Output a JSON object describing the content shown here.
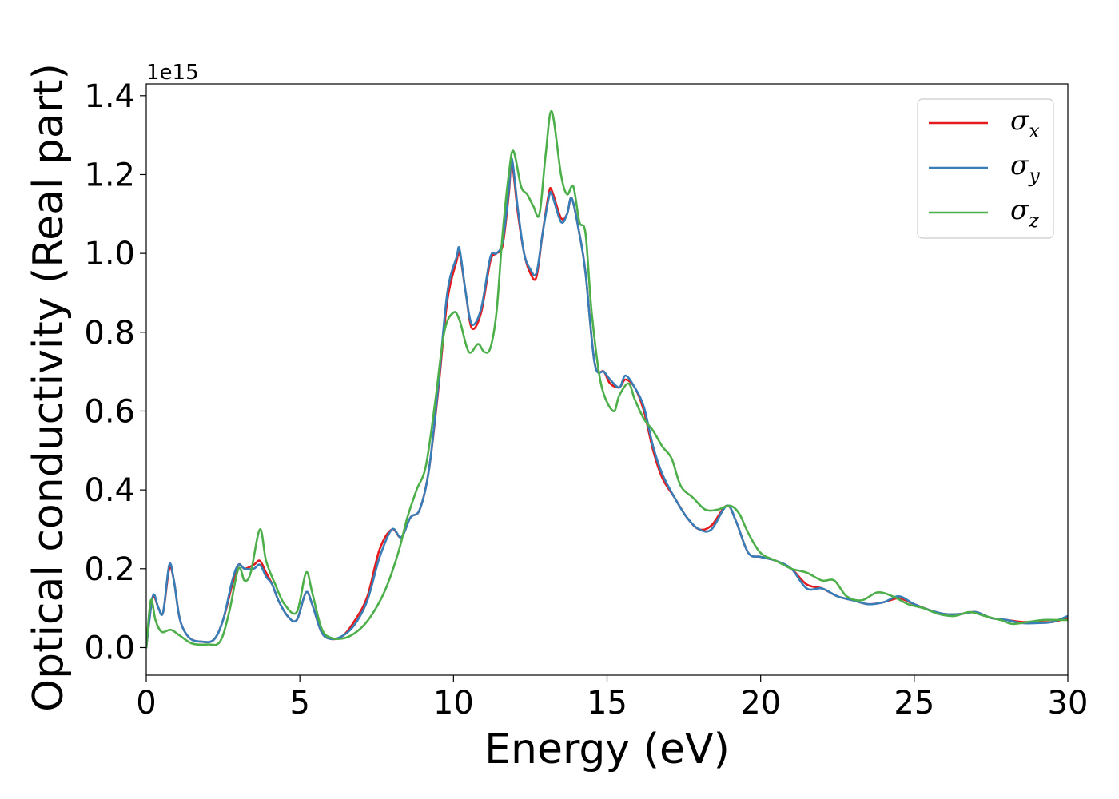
{
  "chart_data": {
    "type": "line",
    "title": "",
    "xlabel": "Energy (eV)",
    "ylabel": "Optical conductivity (Real part)",
    "y_offset_label": "1e15",
    "xlim": [
      0,
      30
    ],
    "ylim": [
      -0.07,
      1.43
    ],
    "x_ticks": [
      "0",
      "5",
      "10",
      "15",
      "20",
      "25",
      "30"
    ],
    "y_ticks": [
      "0.0",
      "0.2",
      "0.4",
      "0.6",
      "0.8",
      "1.0",
      "1.2",
      "1.4"
    ],
    "grid": false,
    "legend_position": "top-right",
    "series": [
      {
        "name": "σx",
        "name_base": "σ",
        "name_sub": "x",
        "color": "#e41a1c",
        "points": [
          [
            0,
            0.0
          ],
          [
            0.15,
            0.1
          ],
          [
            0.25,
            0.13
          ],
          [
            0.4,
            0.1
          ],
          [
            0.55,
            0.09
          ],
          [
            0.75,
            0.2
          ],
          [
            0.9,
            0.17
          ],
          [
            1.1,
            0.07
          ],
          [
            1.4,
            0.025
          ],
          [
            1.8,
            0.015
          ],
          [
            2.2,
            0.02
          ],
          [
            2.5,
            0.07
          ],
          [
            2.8,
            0.16
          ],
          [
            3.0,
            0.21
          ],
          [
            3.2,
            0.2
          ],
          [
            3.5,
            0.21
          ],
          [
            3.7,
            0.22
          ],
          [
            3.9,
            0.19
          ],
          [
            4.1,
            0.16
          ],
          [
            4.3,
            0.12
          ],
          [
            4.6,
            0.08
          ],
          [
            4.9,
            0.07
          ],
          [
            5.2,
            0.14
          ],
          [
            5.4,
            0.11
          ],
          [
            5.7,
            0.04
          ],
          [
            6.0,
            0.022
          ],
          [
            6.4,
            0.03
          ],
          [
            6.8,
            0.07
          ],
          [
            7.2,
            0.13
          ],
          [
            7.6,
            0.25
          ],
          [
            8.0,
            0.3
          ],
          [
            8.3,
            0.28
          ],
          [
            8.6,
            0.33
          ],
          [
            8.9,
            0.35
          ],
          [
            9.2,
            0.45
          ],
          [
            9.5,
            0.65
          ],
          [
            9.8,
            0.88
          ],
          [
            10.1,
            0.98
          ],
          [
            10.2,
            1.0
          ],
          [
            10.4,
            0.9
          ],
          [
            10.6,
            0.81
          ],
          [
            10.9,
            0.85
          ],
          [
            11.2,
            0.98
          ],
          [
            11.4,
            1.0
          ],
          [
            11.6,
            1.02
          ],
          [
            11.8,
            1.15
          ],
          [
            11.9,
            1.23
          ],
          [
            12.1,
            1.1
          ],
          [
            12.3,
            1.0
          ],
          [
            12.5,
            0.95
          ],
          [
            12.7,
            0.94
          ],
          [
            12.9,
            1.05
          ],
          [
            13.1,
            1.15
          ],
          [
            13.2,
            1.16
          ],
          [
            13.5,
            1.09
          ],
          [
            13.7,
            1.1
          ],
          [
            13.85,
            1.14
          ],
          [
            14.1,
            1.05
          ],
          [
            14.3,
            0.95
          ],
          [
            14.6,
            0.72
          ],
          [
            14.9,
            0.7
          ],
          [
            15.1,
            0.67
          ],
          [
            15.4,
            0.66
          ],
          [
            15.6,
            0.68
          ],
          [
            15.9,
            0.66
          ],
          [
            16.2,
            0.6
          ],
          [
            16.5,
            0.5
          ],
          [
            16.8,
            0.43
          ],
          [
            17.2,
            0.38
          ],
          [
            17.6,
            0.33
          ],
          [
            18.0,
            0.3
          ],
          [
            18.4,
            0.31
          ],
          [
            18.9,
            0.36
          ],
          [
            19.2,
            0.32
          ],
          [
            19.6,
            0.24
          ],
          [
            20.0,
            0.23
          ],
          [
            20.5,
            0.22
          ],
          [
            21.0,
            0.2
          ],
          [
            21.5,
            0.16
          ],
          [
            22.0,
            0.15
          ],
          [
            22.5,
            0.13
          ],
          [
            23.0,
            0.12
          ],
          [
            23.5,
            0.11
          ],
          [
            24.0,
            0.115
          ],
          [
            24.5,
            0.125
          ],
          [
            25.0,
            0.11
          ],
          [
            25.5,
            0.095
          ],
          [
            26.0,
            0.085
          ],
          [
            26.5,
            0.085
          ],
          [
            27.0,
            0.09
          ],
          [
            27.5,
            0.075
          ],
          [
            28.0,
            0.07
          ],
          [
            28.5,
            0.065
          ],
          [
            29.0,
            0.065
          ],
          [
            29.5,
            0.065
          ],
          [
            30.0,
            0.075
          ]
        ]
      },
      {
        "name": "σy",
        "name_base": "σ",
        "name_sub": "y",
        "color": "#377eb8",
        "points": [
          [
            0,
            0.0
          ],
          [
            0.15,
            0.1
          ],
          [
            0.25,
            0.135
          ],
          [
            0.4,
            0.1
          ],
          [
            0.55,
            0.09
          ],
          [
            0.75,
            0.21
          ],
          [
            0.9,
            0.17
          ],
          [
            1.1,
            0.07
          ],
          [
            1.4,
            0.025
          ],
          [
            1.8,
            0.015
          ],
          [
            2.2,
            0.02
          ],
          [
            2.5,
            0.07
          ],
          [
            2.8,
            0.17
          ],
          [
            3.0,
            0.21
          ],
          [
            3.2,
            0.2
          ],
          [
            3.5,
            0.2
          ],
          [
            3.7,
            0.21
          ],
          [
            3.9,
            0.18
          ],
          [
            4.1,
            0.16
          ],
          [
            4.3,
            0.12
          ],
          [
            4.6,
            0.08
          ],
          [
            4.9,
            0.07
          ],
          [
            5.2,
            0.14
          ],
          [
            5.4,
            0.11
          ],
          [
            5.7,
            0.04
          ],
          [
            6.0,
            0.022
          ],
          [
            6.4,
            0.03
          ],
          [
            6.8,
            0.06
          ],
          [
            7.2,
            0.12
          ],
          [
            7.6,
            0.23
          ],
          [
            8.0,
            0.3
          ],
          [
            8.3,
            0.28
          ],
          [
            8.6,
            0.33
          ],
          [
            8.9,
            0.35
          ],
          [
            9.2,
            0.45
          ],
          [
            9.5,
            0.66
          ],
          [
            9.8,
            0.9
          ],
          [
            10.1,
            0.99
          ],
          [
            10.2,
            1.01
          ],
          [
            10.4,
            0.9
          ],
          [
            10.6,
            0.82
          ],
          [
            10.9,
            0.86
          ],
          [
            11.2,
            0.99
          ],
          [
            11.4,
            1.0
          ],
          [
            11.6,
            1.03
          ],
          [
            11.8,
            1.16
          ],
          [
            11.9,
            1.24
          ],
          [
            12.1,
            1.11
          ],
          [
            12.3,
            1.0
          ],
          [
            12.5,
            0.96
          ],
          [
            12.7,
            0.95
          ],
          [
            12.9,
            1.05
          ],
          [
            13.1,
            1.14
          ],
          [
            13.2,
            1.15
          ],
          [
            13.5,
            1.08
          ],
          [
            13.7,
            1.1
          ],
          [
            13.85,
            1.14
          ],
          [
            14.1,
            1.05
          ],
          [
            14.3,
            0.95
          ],
          [
            14.6,
            0.72
          ],
          [
            14.9,
            0.7
          ],
          [
            15.1,
            0.68
          ],
          [
            15.4,
            0.66
          ],
          [
            15.6,
            0.69
          ],
          [
            15.9,
            0.66
          ],
          [
            16.2,
            0.61
          ],
          [
            16.5,
            0.51
          ],
          [
            16.8,
            0.44
          ],
          [
            17.2,
            0.38
          ],
          [
            17.6,
            0.33
          ],
          [
            18.0,
            0.3
          ],
          [
            18.4,
            0.3
          ],
          [
            18.9,
            0.36
          ],
          [
            19.2,
            0.32
          ],
          [
            19.6,
            0.24
          ],
          [
            20.0,
            0.23
          ],
          [
            20.5,
            0.22
          ],
          [
            21.0,
            0.2
          ],
          [
            21.5,
            0.15
          ],
          [
            22.0,
            0.15
          ],
          [
            22.5,
            0.13
          ],
          [
            23.0,
            0.12
          ],
          [
            23.5,
            0.11
          ],
          [
            24.0,
            0.115
          ],
          [
            24.5,
            0.13
          ],
          [
            25.0,
            0.11
          ],
          [
            25.5,
            0.095
          ],
          [
            26.0,
            0.085
          ],
          [
            26.5,
            0.085
          ],
          [
            27.0,
            0.09
          ],
          [
            27.5,
            0.075
          ],
          [
            28.0,
            0.07
          ],
          [
            28.5,
            0.062
          ],
          [
            29.0,
            0.062
          ],
          [
            29.5,
            0.065
          ],
          [
            30.0,
            0.08
          ]
        ]
      },
      {
        "name": "σz",
        "name_base": "σ",
        "name_sub": "z",
        "color": "#4daf4a",
        "points": [
          [
            0,
            0.0
          ],
          [
            0.15,
            0.12
          ],
          [
            0.3,
            0.07
          ],
          [
            0.5,
            0.04
          ],
          [
            0.8,
            0.045
          ],
          [
            1.1,
            0.03
          ],
          [
            1.5,
            0.01
          ],
          [
            2.0,
            0.008
          ],
          [
            2.4,
            0.015
          ],
          [
            2.7,
            0.09
          ],
          [
            3.0,
            0.2
          ],
          [
            3.2,
            0.17
          ],
          [
            3.4,
            0.19
          ],
          [
            3.7,
            0.3
          ],
          [
            3.9,
            0.22
          ],
          [
            4.2,
            0.16
          ],
          [
            4.5,
            0.11
          ],
          [
            4.9,
            0.09
          ],
          [
            5.2,
            0.19
          ],
          [
            5.4,
            0.14
          ],
          [
            5.7,
            0.05
          ],
          [
            6.0,
            0.025
          ],
          [
            6.5,
            0.025
          ],
          [
            7.0,
            0.05
          ],
          [
            7.4,
            0.09
          ],
          [
            7.8,
            0.15
          ],
          [
            8.2,
            0.24
          ],
          [
            8.5,
            0.33
          ],
          [
            8.8,
            0.4
          ],
          [
            9.1,
            0.46
          ],
          [
            9.4,
            0.62
          ],
          [
            9.7,
            0.8
          ],
          [
            10.0,
            0.85
          ],
          [
            10.2,
            0.83
          ],
          [
            10.5,
            0.75
          ],
          [
            10.8,
            0.77
          ],
          [
            11.0,
            0.75
          ],
          [
            11.2,
            0.76
          ],
          [
            11.4,
            0.85
          ],
          [
            11.6,
            1.05
          ],
          [
            11.8,
            1.2
          ],
          [
            11.95,
            1.26
          ],
          [
            12.2,
            1.17
          ],
          [
            12.4,
            1.15
          ],
          [
            12.6,
            1.12
          ],
          [
            12.8,
            1.1
          ],
          [
            13.0,
            1.25
          ],
          [
            13.2,
            1.36
          ],
          [
            13.5,
            1.2
          ],
          [
            13.7,
            1.15
          ],
          [
            13.9,
            1.17
          ],
          [
            14.1,
            1.08
          ],
          [
            14.3,
            1.05
          ],
          [
            14.5,
            0.85
          ],
          [
            14.8,
            0.67
          ],
          [
            15.2,
            0.6
          ],
          [
            15.4,
            0.64
          ],
          [
            15.7,
            0.67
          ],
          [
            15.9,
            0.63
          ],
          [
            16.2,
            0.58
          ],
          [
            16.5,
            0.55
          ],
          [
            16.8,
            0.51
          ],
          [
            17.1,
            0.48
          ],
          [
            17.4,
            0.41
          ],
          [
            17.8,
            0.38
          ],
          [
            18.2,
            0.35
          ],
          [
            18.6,
            0.35
          ],
          [
            19.0,
            0.36
          ],
          [
            19.3,
            0.34
          ],
          [
            19.6,
            0.29
          ],
          [
            20.0,
            0.24
          ],
          [
            20.5,
            0.22
          ],
          [
            21.0,
            0.2
          ],
          [
            21.5,
            0.19
          ],
          [
            22.0,
            0.17
          ],
          [
            22.4,
            0.17
          ],
          [
            22.8,
            0.13
          ],
          [
            23.3,
            0.12
          ],
          [
            23.8,
            0.14
          ],
          [
            24.3,
            0.13
          ],
          [
            24.8,
            0.11
          ],
          [
            25.3,
            0.1
          ],
          [
            25.8,
            0.085
          ],
          [
            26.3,
            0.08
          ],
          [
            26.8,
            0.09
          ],
          [
            27.3,
            0.08
          ],
          [
            27.8,
            0.07
          ],
          [
            28.2,
            0.06
          ],
          [
            28.7,
            0.065
          ],
          [
            29.2,
            0.07
          ],
          [
            29.6,
            0.07
          ],
          [
            30.0,
            0.07
          ]
        ]
      }
    ]
  }
}
